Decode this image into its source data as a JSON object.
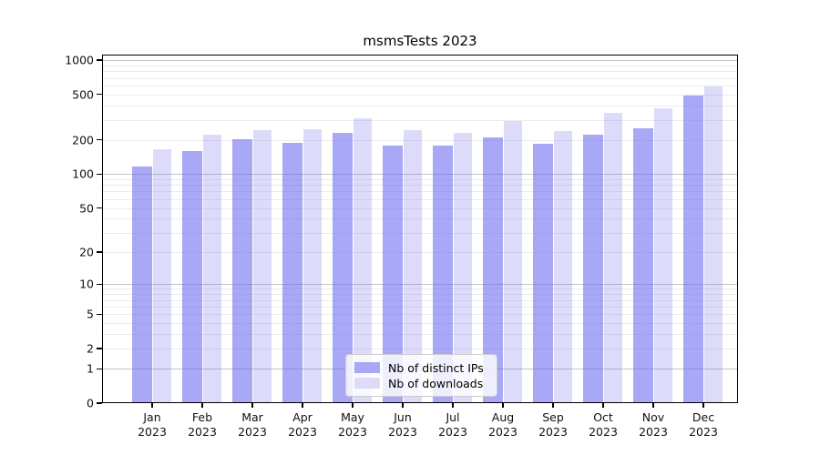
{
  "chart_data": {
    "type": "bar",
    "title": "msmsTests 2023",
    "categories": [
      "Jan 2023",
      "Feb 2023",
      "Mar 2023",
      "Apr 2023",
      "May 2023",
      "Jun 2023",
      "Jul 2023",
      "Aug 2023",
      "Sep 2023",
      "Oct 2023",
      "Nov 2023",
      "Dec 2023"
    ],
    "series": [
      {
        "name": "Nb of distinct IPs",
        "color": "#a8a8f4",
        "fill": "rgba(110,110,240,0.6)",
        "values": [
          117,
          160,
          202,
          187,
          230,
          178,
          177,
          209,
          185,
          224,
          251,
          490
        ]
      },
      {
        "name": "Nb of downloads",
        "color": "#dcdcf9",
        "fill": "rgba(115,115,235,0.25)",
        "values": [
          165,
          224,
          243,
          250,
          307,
          243,
          230,
          294,
          240,
          347,
          380,
          590
        ]
      }
    ],
    "yscale": "log1p",
    "yticks": [
      1000,
      500,
      200,
      100,
      50,
      20,
      10,
      5,
      2,
      1,
      0
    ],
    "ylim": [
      0,
      1117
    ],
    "xlabel": "",
    "ylabel": "",
    "grid": {
      "on": true,
      "major_at": [
        1,
        10,
        100,
        1000
      ],
      "minor_per_decade": [
        2,
        3,
        4,
        5,
        6,
        7,
        8,
        9
      ],
      "major_color": "#c4c4c4",
      "minor_color": "#ebebeb"
    },
    "legend_position": "lower-center",
    "axis_color": "#000000",
    "background_color": "#ffffff"
  }
}
